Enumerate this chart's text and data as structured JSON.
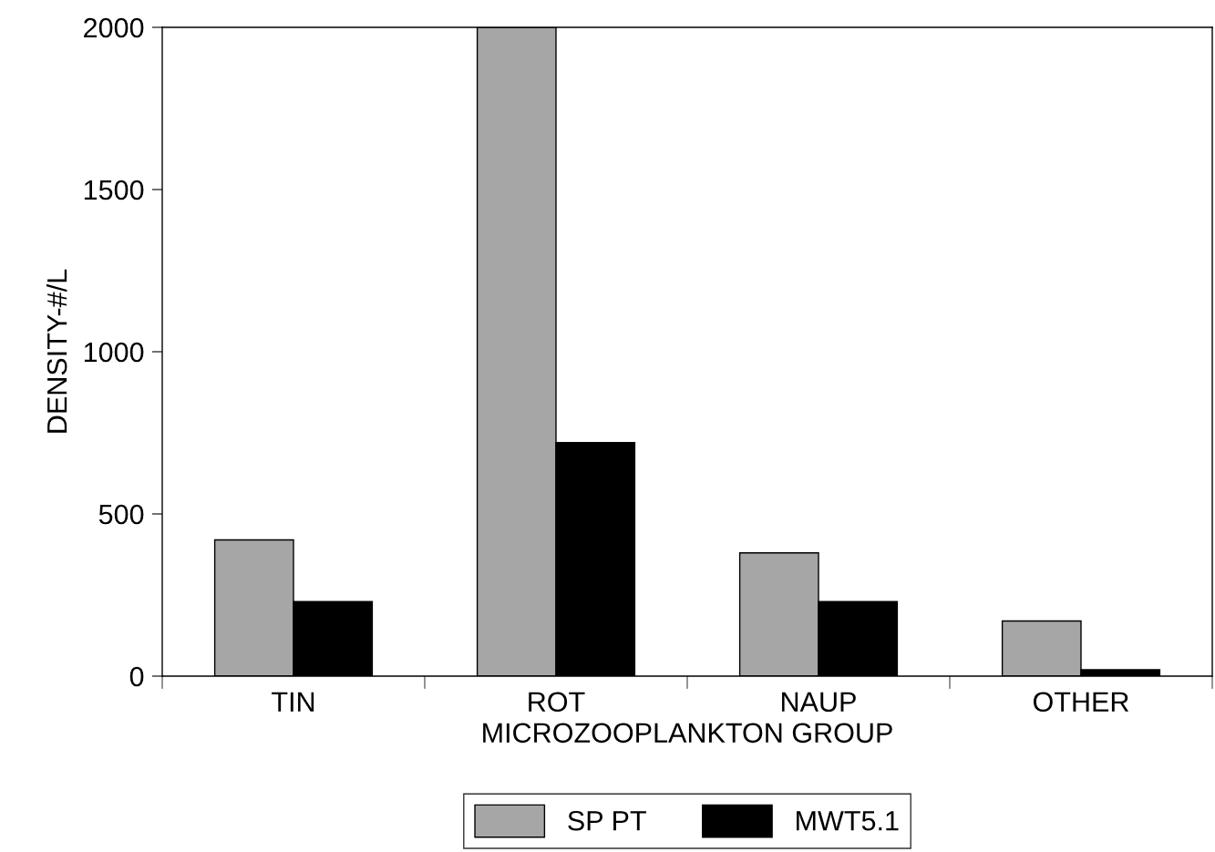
{
  "chart_data": {
    "type": "bar",
    "xlabel": "MICROZOOPLANKTON GROUP",
    "ylabel": "DENSITY-#/L",
    "categories": [
      "TIN",
      "ROT",
      "NAUP",
      "OTHER"
    ],
    "series": [
      {
        "name": "SP PT",
        "color": "#a6a6a6",
        "values": [
          420,
          2000,
          380,
          170
        ]
      },
      {
        "name": "MWT5.1",
        "color": "#000000",
        "values": [
          230,
          720,
          230,
          20
        ]
      }
    ],
    "ylim": [
      0,
      2000
    ],
    "yticks": [
      0,
      500,
      1000,
      1500,
      2000
    ],
    "grid": false,
    "legend": "bottom"
  }
}
